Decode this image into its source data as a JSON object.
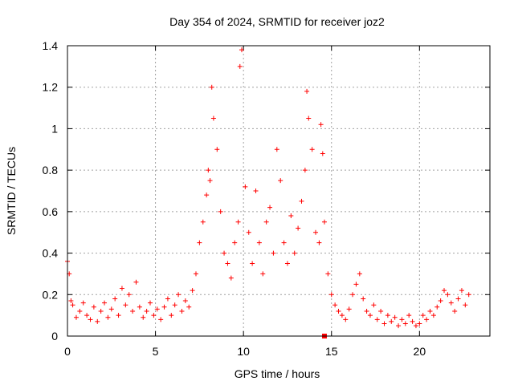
{
  "chart_data": {
    "type": "scatter",
    "title": "Day 354 of 2024, SRMTID for receiver joz2",
    "xlabel": "GPS time / hours",
    "ylabel": "SRMTID / TECUs",
    "xlim": [
      0,
      24
    ],
    "ylim": [
      0,
      1.4
    ],
    "xticks": [
      0,
      5,
      10,
      15,
      20
    ],
    "xtick_labels": [
      "0",
      "5",
      "10",
      "15",
      "20"
    ],
    "yticks": [
      0,
      0.2,
      0.4,
      0.6,
      0.8,
      1.0,
      1.2,
      1.4
    ],
    "ytick_labels": [
      "0",
      "0.2",
      "0.4",
      "0.6",
      "0.8",
      "1",
      "1.2",
      "1.4"
    ],
    "grid": true,
    "marker": "plus",
    "color": "#ff0000",
    "series": [
      {
        "name": "SRMTID",
        "x": [
          0.0,
          0.1,
          0.2,
          0.3,
          0.5,
          0.7,
          0.9,
          1.1,
          1.3,
          1.5,
          1.7,
          1.9,
          2.1,
          2.3,
          2.5,
          2.7,
          2.9,
          3.1,
          3.3,
          3.5,
          3.7,
          3.9,
          4.1,
          4.3,
          4.5,
          4.7,
          4.9,
          5.1,
          5.3,
          5.5,
          5.7,
          5.9,
          6.1,
          6.3,
          6.5,
          6.7,
          6.9,
          7.1,
          7.3,
          7.5,
          7.7,
          7.9,
          8.0,
          8.1,
          8.2,
          8.3,
          8.5,
          8.7,
          8.9,
          9.1,
          9.3,
          9.5,
          9.7,
          9.8,
          9.9,
          10.1,
          10.3,
          10.5,
          10.7,
          10.9,
          11.1,
          11.3,
          11.5,
          11.7,
          11.9,
          12.1,
          12.3,
          12.5,
          12.7,
          12.9,
          13.1,
          13.3,
          13.5,
          13.6,
          13.7,
          13.9,
          14.1,
          14.3,
          14.4,
          14.5,
          14.6,
          14.8,
          15.0,
          15.2,
          15.4,
          15.6,
          15.8,
          16.0,
          16.2,
          16.4,
          16.6,
          16.8,
          17.0,
          17.2,
          17.4,
          17.6,
          17.8,
          18.0,
          18.2,
          18.4,
          18.6,
          18.8,
          19.0,
          19.2,
          19.4,
          19.6,
          19.8,
          20.0,
          20.2,
          20.4,
          20.6,
          20.8,
          21.0,
          21.2,
          21.4,
          21.6,
          21.8,
          22.0,
          22.2,
          22.4,
          22.6,
          22.8
        ],
        "y": [
          0.36,
          0.3,
          0.17,
          0.15,
          0.09,
          0.12,
          0.16,
          0.1,
          0.08,
          0.14,
          0.07,
          0.12,
          0.16,
          0.09,
          0.13,
          0.18,
          0.1,
          0.23,
          0.15,
          0.2,
          0.12,
          0.26,
          0.14,
          0.09,
          0.12,
          0.16,
          0.1,
          0.13,
          0.08,
          0.14,
          0.18,
          0.1,
          0.15,
          0.2,
          0.12,
          0.17,
          0.14,
          0.22,
          0.3,
          0.45,
          0.55,
          0.68,
          0.8,
          0.75,
          1.2,
          1.05,
          0.9,
          0.6,
          0.4,
          0.35,
          0.28,
          0.45,
          0.55,
          1.3,
          1.38,
          0.72,
          0.5,
          0.35,
          0.7,
          0.45,
          0.3,
          0.55,
          0.62,
          0.4,
          0.9,
          0.75,
          0.45,
          0.35,
          0.58,
          0.4,
          0.52,
          0.65,
          0.8,
          1.18,
          1.05,
          0.9,
          0.5,
          0.45,
          1.02,
          0.88,
          0.55,
          0.3,
          0.2,
          0.15,
          0.12,
          0.1,
          0.08,
          0.13,
          0.2,
          0.25,
          0.3,
          0.18,
          0.12,
          0.1,
          0.15,
          0.08,
          0.12,
          0.06,
          0.1,
          0.07,
          0.09,
          0.05,
          0.08,
          0.06,
          0.1,
          0.07,
          0.05,
          0.06,
          0.1,
          0.08,
          0.12,
          0.1,
          0.14,
          0.17,
          0.22,
          0.2,
          0.16,
          0.12,
          0.18,
          0.22,
          0.15,
          0.2
        ]
      }
    ],
    "annotations": [
      {
        "x": 14.6,
        "y": 0.0,
        "marker": "square"
      }
    ]
  }
}
